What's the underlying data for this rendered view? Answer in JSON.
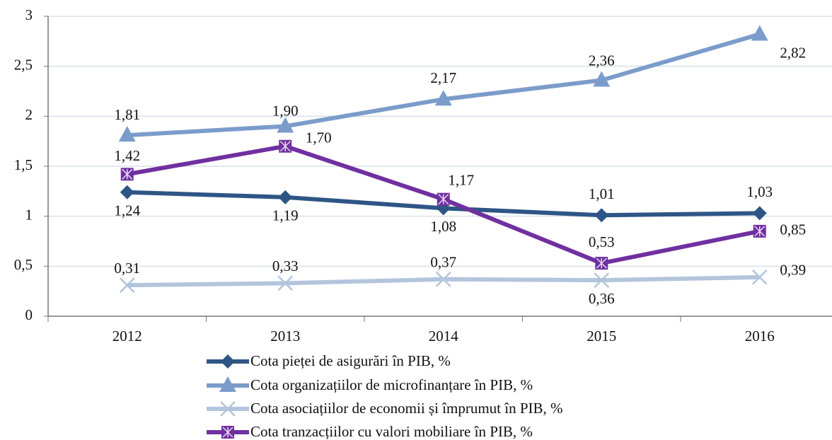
{
  "chart_data": {
    "type": "line",
    "categories": [
      "2012",
      "2013",
      "2014",
      "2015",
      "2016"
    ],
    "ylim": [
      0,
      3
    ],
    "yticks": [
      0,
      {
        "value": 0.5,
        "label": "0,5"
      },
      1,
      {
        "value": 1.5,
        "label": "1,5"
      },
      2,
      {
        "value": 2.5,
        "label": "2,5"
      },
      3
    ],
    "grid": true,
    "legend": "bottom",
    "series": [
      {
        "name": "Cota pieței de asigurări în PIB, %",
        "color": "#2e5585",
        "marker": "diamond",
        "values": [
          1.24,
          1.19,
          1.08,
          1.01,
          1.03
        ],
        "value_labels": [
          "1,24",
          "1,19",
          "1,08",
          "1,01",
          "1,03"
        ]
      },
      {
        "name": "Cota organizațiilor de microfinanțare în PIB, %",
        "color": "#7b9ccb",
        "marker": "triangle",
        "values": [
          1.81,
          1.9,
          2.17,
          2.36,
          2.82
        ],
        "value_labels": [
          "1,81",
          "1,90",
          "2,17",
          "2,36",
          "2,82"
        ]
      },
      {
        "name": "Cota asociațiilor de economii și împrumut în PIB, %",
        "color": "#b3c5dd",
        "marker": "x",
        "values": [
          0.31,
          0.33,
          0.37,
          0.36,
          0.39
        ],
        "value_labels": [
          "0,31",
          "0,33",
          "0,37",
          "0,36",
          "0,39"
        ]
      },
      {
        "name": "Cota tranzacțiilor cu valori mobiliare în PIB, %",
        "color": "#7030a0",
        "marker": "boxx",
        "values": [
          1.42,
          1.7,
          1.17,
          0.53,
          0.85
        ],
        "value_labels": [
          "1,42",
          "1,70",
          "1,17",
          "0,53",
          "0,85"
        ]
      }
    ]
  }
}
